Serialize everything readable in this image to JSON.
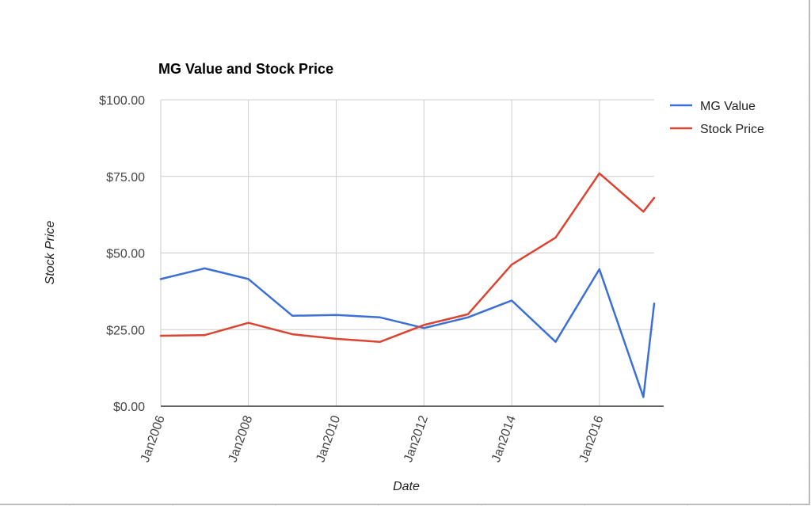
{
  "chart_data": {
    "type": "line",
    "title": "MG Value and Stock Price",
    "xlabel": "Date",
    "ylabel": "Stock Price",
    "xlim": [
      "2006-01-01",
      "2017-04-01"
    ],
    "ylim": [
      0,
      100
    ],
    "x_tick_labels": [
      "Jan2006",
      "Jan2008",
      "Jan2010",
      "Jan2012",
      "Jan2014",
      "Jan2016"
    ],
    "x_tick_dates": [
      "2006-01-01",
      "2008-01-01",
      "2010-01-01",
      "2012-01-01",
      "2014-01-01",
      "2016-01-01"
    ],
    "y_ticks": [
      0,
      25,
      50,
      75,
      100
    ],
    "y_tick_labels": [
      "$0.00",
      "$25.00",
      "$50.00",
      "$75.00",
      "$100.00"
    ],
    "grid": true,
    "legend_position": "right",
    "series": [
      {
        "name": "MG Value",
        "color": "#3c6fd6",
        "points": [
          {
            "x": "2006-01-01",
            "y": 41.5
          },
          {
            "x": "2007-01-01",
            "y": 45.0
          },
          {
            "x": "2008-01-01",
            "y": 41.5
          },
          {
            "x": "2009-01-01",
            "y": 29.5
          },
          {
            "x": "2010-01-01",
            "y": 29.8
          },
          {
            "x": "2011-01-01",
            "y": 29.0
          },
          {
            "x": "2012-01-01",
            "y": 25.5
          },
          {
            "x": "2013-01-01",
            "y": 29.0
          },
          {
            "x": "2014-01-01",
            "y": 34.5
          },
          {
            "x": "2015-01-01",
            "y": 21.0
          },
          {
            "x": "2016-01-01",
            "y": 44.7
          },
          {
            "x": "2017-01-01",
            "y": 3.0
          },
          {
            "x": "2017-04-01",
            "y": 33.5
          }
        ]
      },
      {
        "name": "Stock Price",
        "color": "#db4430",
        "points": [
          {
            "x": "2006-01-01",
            "y": 23.0
          },
          {
            "x": "2007-01-01",
            "y": 23.2
          },
          {
            "x": "2008-01-01",
            "y": 27.2
          },
          {
            "x": "2009-01-01",
            "y": 23.5
          },
          {
            "x": "2010-01-01",
            "y": 22.0
          },
          {
            "x": "2011-01-01",
            "y": 21.0
          },
          {
            "x": "2012-01-01",
            "y": 26.5
          },
          {
            "x": "2013-01-01",
            "y": 30.0
          },
          {
            "x": "2014-01-01",
            "y": 46.2
          },
          {
            "x": "2015-01-01",
            "y": 55.0
          },
          {
            "x": "2016-01-01",
            "y": 76.0
          },
          {
            "x": "2017-01-01",
            "y": 63.5
          },
          {
            "x": "2017-04-01",
            "y": 68.0
          }
        ]
      }
    ]
  }
}
